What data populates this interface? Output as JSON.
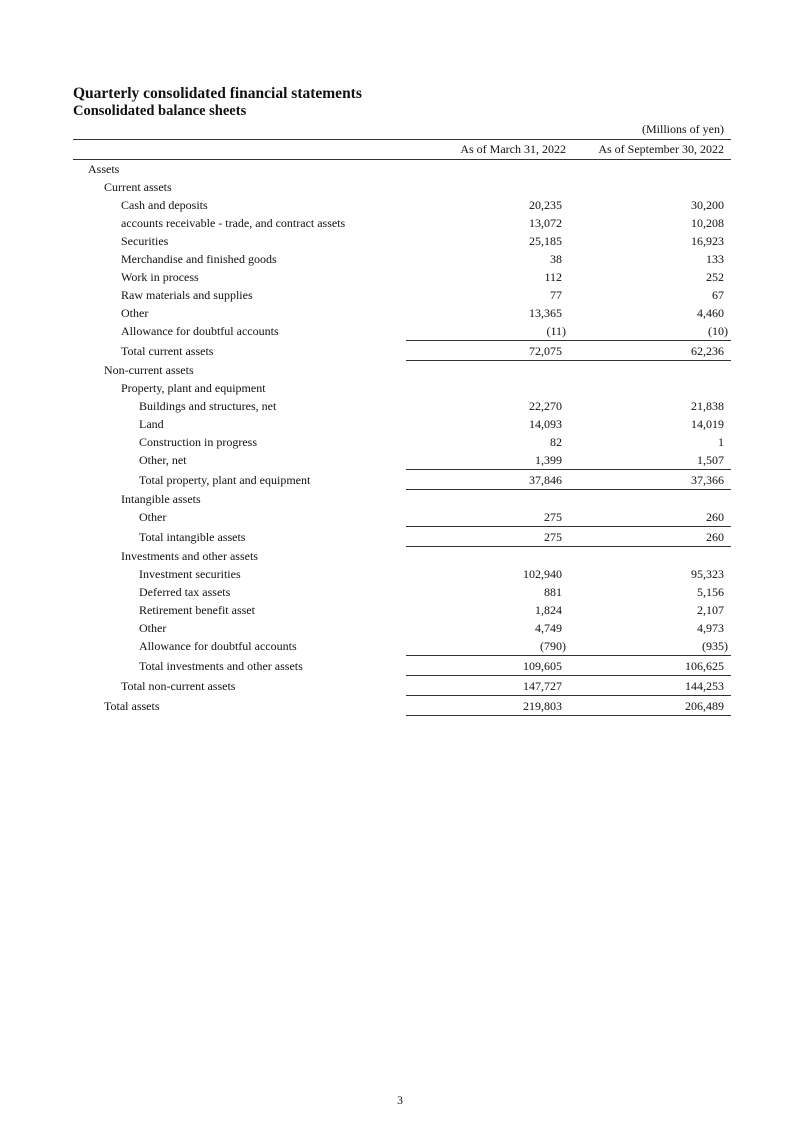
{
  "title": "Quarterly consolidated financial statements",
  "subtitle": "Consolidated balance sheets",
  "unit": "(Millions of yen)",
  "columns": [
    "As of March 31, 2022",
    "As of September 30, 2022"
  ],
  "rows": [
    {
      "label": "Assets",
      "level": 0,
      "v1": "",
      "v2": ""
    },
    {
      "label": "Current assets",
      "level": 1,
      "v1": "",
      "v2": ""
    },
    {
      "label": "Cash and deposits",
      "level": 2,
      "v1": "20,235",
      "v2": "30,200"
    },
    {
      "label": "accounts receivable - trade, and contract assets",
      "level": 2,
      "v1": "13,072",
      "v2": "10,208"
    },
    {
      "label": "Securities",
      "level": 2,
      "v1": "25,185",
      "v2": "16,923"
    },
    {
      "label": "Merchandise and finished goods",
      "level": 2,
      "v1": "38",
      "v2": "133"
    },
    {
      "label": "Work in process",
      "level": 2,
      "v1": "112",
      "v2": "252"
    },
    {
      "label": "Raw materials and supplies",
      "level": 2,
      "v1": "77",
      "v2": "67"
    },
    {
      "label": "Other",
      "level": 2,
      "v1": "13,365",
      "v2": "4,460"
    },
    {
      "label": "Allowance for doubtful accounts",
      "level": 2,
      "v1": "(11)",
      "v2": "(10)"
    },
    {
      "label": "Total current assets",
      "level": 2,
      "v1": "72,075",
      "v2": "62,236",
      "total": true
    },
    {
      "label": "Non-current assets",
      "level": 1,
      "v1": "",
      "v2": ""
    },
    {
      "label": "Property, plant and equipment",
      "level": 2,
      "v1": "",
      "v2": ""
    },
    {
      "label": "Buildings and structures, net",
      "level": 3,
      "v1": "22,270",
      "v2": "21,838"
    },
    {
      "label": "Land",
      "level": 3,
      "v1": "14,093",
      "v2": "14,019"
    },
    {
      "label": "Construction in progress",
      "level": 3,
      "v1": "82",
      "v2": "1"
    },
    {
      "label": "Other, net",
      "level": 3,
      "v1": "1,399",
      "v2": "1,507"
    },
    {
      "label": "Total property, plant and equipment",
      "level": 3,
      "v1": "37,846",
      "v2": "37,366",
      "total": true
    },
    {
      "label": "Intangible assets",
      "level": 2,
      "v1": "",
      "v2": ""
    },
    {
      "label": "Other",
      "level": 3,
      "v1": "275",
      "v2": "260"
    },
    {
      "label": "Total intangible assets",
      "level": 3,
      "v1": "275",
      "v2": "260",
      "total": true
    },
    {
      "label": "Investments and other assets",
      "level": 2,
      "v1": "",
      "v2": ""
    },
    {
      "label": "Investment securities",
      "level": 3,
      "v1": "102,940",
      "v2": "95,323"
    },
    {
      "label": "Deferred tax assets",
      "level": 3,
      "v1": "881",
      "v2": "5,156"
    },
    {
      "label": "Retirement benefit asset",
      "level": 3,
      "v1": "1,824",
      "v2": "2,107"
    },
    {
      "label": "Other",
      "level": 3,
      "v1": "4,749",
      "v2": "4,973"
    },
    {
      "label": "Allowance for doubtful accounts",
      "level": 3,
      "v1": "(790)",
      "v2": "(935)"
    },
    {
      "label": "Total investments and other assets",
      "level": 3,
      "v1": "109,605",
      "v2": "106,625",
      "total": true
    },
    {
      "label": "Total non-current assets",
      "level": 2,
      "v1": "147,727",
      "v2": "144,253",
      "total": true
    },
    {
      "label": "Total assets",
      "level": 1,
      "v1": "219,803",
      "v2": "206,489",
      "total": true
    }
  ],
  "page_number": "3"
}
